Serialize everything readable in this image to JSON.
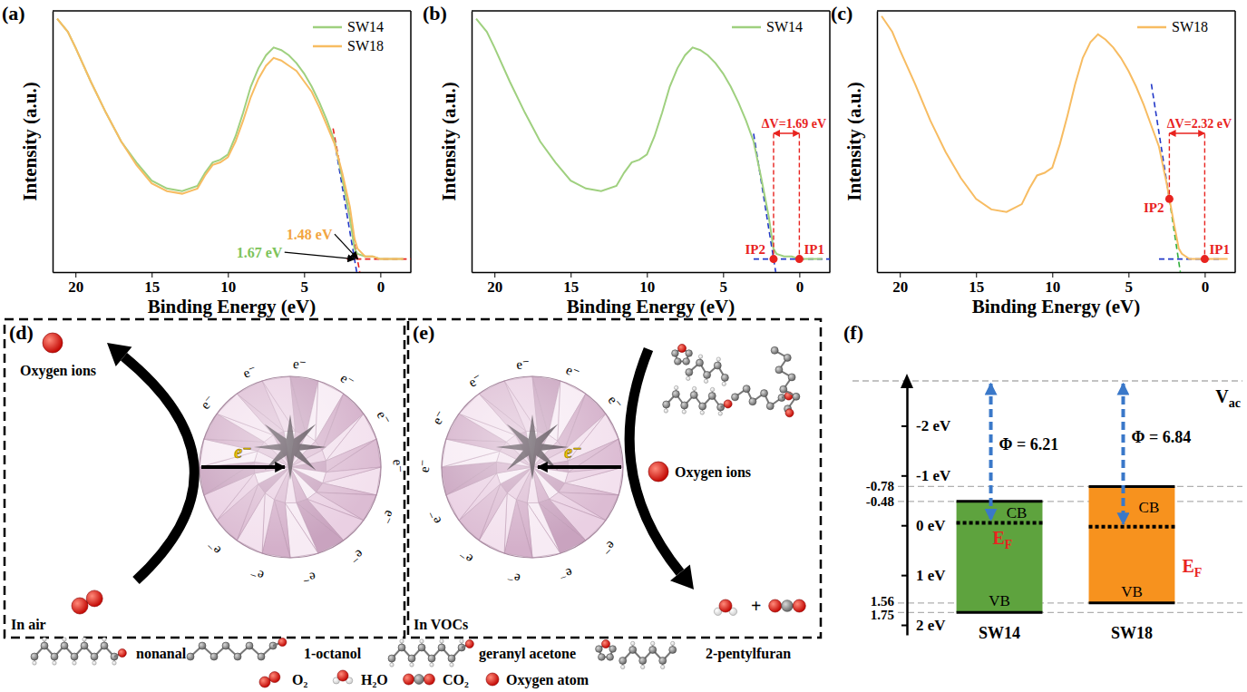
{
  "chart_data": [
    {
      "type": "line",
      "panel_label": "(a)",
      "xlabel": "Binding Energy (eV)",
      "ylabel": "Intensity (a.u.)",
      "x": [
        21.2,
        20.5,
        20,
        19,
        18,
        17,
        16,
        15,
        14,
        13,
        12,
        11.5,
        11,
        10.5,
        10,
        9.5,
        9,
        8.5,
        8,
        7.5,
        7,
        6.5,
        6,
        5.5,
        5,
        4.5,
        4,
        3.5,
        3,
        2.5,
        2,
        1.7,
        1.5,
        1,
        0.5,
        0,
        -0.5,
        -1,
        -1.5
      ],
      "series": [
        {
          "name": "SW14",
          "color": "#9fd07f",
          "values": [
            97,
            92,
            86,
            73,
            61,
            50,
            42,
            35,
            32,
            31,
            33,
            38,
            42,
            43,
            45,
            52,
            61,
            71,
            78,
            83,
            86,
            85,
            83,
            80,
            76,
            71,
            65,
            58,
            50,
            36,
            21,
            9,
            7,
            6,
            6,
            5,
            5,
            5,
            5
          ]
        },
        {
          "name": "SW18",
          "color": "#f7bc62",
          "values": [
            97,
            92,
            86,
            73,
            61,
            50,
            41,
            34,
            31,
            30,
            32,
            37,
            41,
            42,
            44,
            50,
            58,
            67,
            74,
            79,
            82,
            81,
            79,
            77,
            73,
            69,
            63,
            56,
            49,
            38,
            25,
            13,
            9,
            6,
            6,
            5,
            5,
            5,
            5
          ]
        }
      ],
      "xlim": [
        21.5,
        -2
      ],
      "xticks": [
        20,
        15,
        10,
        5,
        0
      ],
      "ylim": [
        0,
        100
      ],
      "tick_labels": "x",
      "legend": "upper right",
      "fit_lines": [
        {
          "color": "#e8231f",
          "line_style": "dashed",
          "x": [
            3.1,
            1.35
          ],
          "y": [
            55,
            0
          ]
        },
        {
          "color": "#2238c8",
          "line_style": "dashed",
          "x": [
            3.0,
            1.55
          ],
          "y": [
            50,
            0
          ]
        },
        {
          "color": "#e8231f",
          "line_style": "dashed",
          "x": [
            2.2,
            -2
          ],
          "y": [
            5,
            5
          ]
        }
      ],
      "onsets": [
        {
          "label": "1.67 eV",
          "x": 1.67,
          "y": 5,
          "color": "#7dc35a"
        },
        {
          "label": "1.48 eV",
          "x": 1.48,
          "y": 5,
          "color": "#f2a541"
        }
      ]
    },
    {
      "type": "line",
      "panel_label": "(b)",
      "xlabel": "Binding Energy (eV)",
      "ylabel": "Intensity (a.u.)",
      "x": [
        21.2,
        20.5,
        20,
        19,
        18,
        17,
        16,
        15,
        14,
        13,
        12,
        11.5,
        11,
        10.5,
        10,
        9.5,
        9,
        8.5,
        8,
        7.5,
        7,
        6.5,
        6,
        5.5,
        5,
        4.5,
        4,
        3.5,
        3,
        2.5,
        2,
        1.7,
        1.5,
        1,
        0.5,
        0,
        -0.5,
        -1,
        -1.5
      ],
      "series": [
        {
          "name": "SW14",
          "color": "#9fd07f",
          "values": [
            97,
            92,
            86,
            73,
            61,
            50,
            42,
            35,
            32,
            31,
            33,
            38,
            42,
            43,
            45,
            52,
            61,
            71,
            78,
            83,
            86,
            85,
            83,
            80,
            76,
            71,
            65,
            58,
            50,
            36,
            21,
            9,
            7,
            6,
            6,
            5,
            5,
            5,
            5
          ]
        }
      ],
      "xlim": [
        21.5,
        -2
      ],
      "xticks": [
        20,
        15,
        10,
        5,
        0
      ],
      "ylim": [
        0,
        100
      ],
      "tick_labels": "x",
      "legend": "upper right",
      "fit_lines": [
        {
          "color": "#2238c8",
          "line_style": "dashed",
          "x": [
            3.0,
            1.55
          ],
          "y": [
            53,
            0
          ]
        },
        {
          "color": "#2238c8",
          "line_style": "dashed",
          "x": [
            3.0,
            -2
          ],
          "y": [
            5,
            5
          ]
        }
      ],
      "points": [
        {
          "label": "IP1",
          "x": 0,
          "y": 5,
          "color": "#e8231f"
        },
        {
          "label": "IP2",
          "x": 1.69,
          "y": 5,
          "color": "#e8231f"
        }
      ],
      "delta": {
        "label": "ΔV=1.69 eV",
        "value": 1.69,
        "color": "#e8231f"
      }
    },
    {
      "type": "line",
      "panel_label": "(c)",
      "xlabel": "Binding Energy (eV)",
      "ylabel": "Intensity (a.u.)",
      "x": [
        21.2,
        20.5,
        20,
        19,
        18,
        17,
        16,
        15,
        14,
        13,
        12,
        11.5,
        11,
        10.5,
        10,
        9.5,
        9,
        8.5,
        8,
        7.5,
        7,
        6.5,
        6,
        5.5,
        5,
        4.5,
        4,
        3.5,
        3,
        2.5,
        2,
        1.7,
        1.5,
        1,
        0.5,
        0,
        -0.5,
        -1,
        -1.5
      ],
      "series": [
        {
          "name": "SW18",
          "color": "#f7bc62",
          "values": [
            98,
            92,
            85,
            72,
            58,
            46,
            36,
            28,
            24,
            23,
            26,
            32,
            37,
            38,
            40,
            49,
            60,
            72,
            82,
            88,
            91,
            89,
            86,
            82,
            77,
            71,
            64,
            56,
            48,
            34,
            18,
            9,
            7,
            5,
            5,
            5,
            5,
            5,
            5
          ]
        }
      ],
      "xlim": [
        21.5,
        -2
      ],
      "xticks": [
        20,
        15,
        10,
        5,
        0
      ],
      "ylim": [
        0,
        100
      ],
      "tick_labels": "x",
      "legend": "upper right",
      "fit_lines": [
        {
          "color": "#2238c8",
          "line_style": "dashed",
          "x": [
            3.5,
            2.32
          ],
          "y": [
            72,
            28
          ]
        },
        {
          "color": "#2fae3a",
          "line_style": "dashed",
          "x": [
            2.32,
            1.6
          ],
          "y": [
            28,
            0
          ]
        },
        {
          "color": "#2238c8",
          "line_style": "dashed",
          "x": [
            3.0,
            -1.0
          ],
          "y": [
            5,
            5
          ]
        }
      ],
      "points": [
        {
          "label": "IP1",
          "x": 0,
          "y": 5,
          "color": "#e8231f"
        },
        {
          "label": "IP2",
          "x": 2.32,
          "y": 28,
          "color": "#e8231f"
        }
      ],
      "delta": {
        "label": "ΔV=2.32 eV",
        "value": 2.32,
        "color": "#e8231f"
      }
    },
    {
      "type": "band_diagram",
      "panel_label": "(f)",
      "ylim": [
        -2.9,
        2.2
      ],
      "yticks": [
        {
          "value": -2,
          "label": "-2 eV"
        },
        {
          "value": -1,
          "label": "-1 eV"
        },
        {
          "value": 0,
          "label": "0 eV"
        },
        {
          "value": 1,
          "label": "1 eV"
        },
        {
          "value": 2,
          "label": "2 eV"
        }
      ],
      "levels": [
        -0.78,
        -0.48,
        1.56,
        1.75
      ],
      "vacuum_label": {
        "main": "V",
        "sub": "ac"
      },
      "fermi_label": {
        "main": "E",
        "sub": "F"
      },
      "series": [
        {
          "name": "SW14",
          "color": "#5ea33e",
          "cb": -0.48,
          "vb": 1.75,
          "fermi": -0.05,
          "cb_label": "CB",
          "vb_label": "VB",
          "work_function_label": "Φ = 6.21"
        },
        {
          "name": "SW18",
          "color": "#f7921e",
          "cb": -0.78,
          "vb": 1.56,
          "fermi": 0.03,
          "cb_label": "CB",
          "vb_label": "VB",
          "work_function_label": "Φ = 6.84"
        }
      ]
    }
  ],
  "diagrams": {
    "d": {
      "panel_label": "(d)",
      "setting": "In air",
      "ion_label": "Oxygen ions",
      "electron": "e⁻"
    },
    "e": {
      "panel_label": "(e)",
      "setting": "In VOCs",
      "ion_label": "Oxygen ions",
      "electron": "e⁻",
      "plus": "+"
    },
    "legend": {
      "molecules": [
        "nonanal",
        "1-octanol",
        "geranyl acetone",
        "2-pentylfuran"
      ],
      "species": [
        "O₂",
        "H₂O",
        "CO₂",
        "Oxygen atom"
      ]
    }
  }
}
